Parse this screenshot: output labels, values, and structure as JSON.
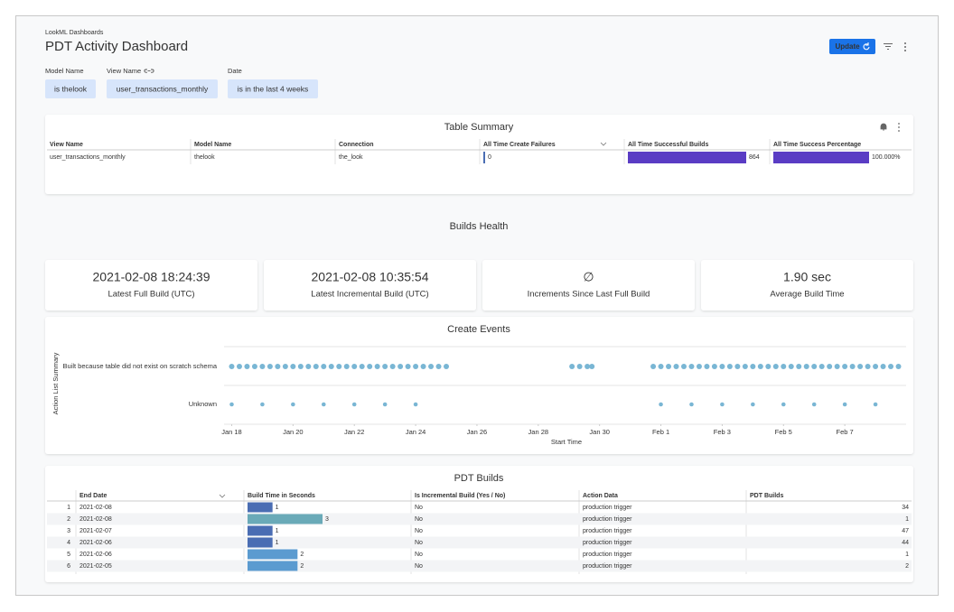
{
  "header": {
    "breadcrumb": "LookML Dashboards",
    "title": "PDT Activity Dashboard",
    "update_button": "Update"
  },
  "filters": [
    {
      "label": "Model Name",
      "value": "is thelook"
    },
    {
      "label": "View Name",
      "value": "user_transactions_monthly"
    },
    {
      "label": "Date",
      "value": "is in the last 4 weeks"
    }
  ],
  "table_summary": {
    "title": "Table Summary",
    "columns": [
      "View Name",
      "Model Name",
      "Connection",
      "All Time Create Failures",
      "All Time Successful Builds",
      "All Time Success Percentage"
    ],
    "rows": [
      [
        "user_transactions_monthly",
        "thelook",
        "the_look",
        0,
        864,
        {
          "value": 100,
          "label": "100.000%"
        }
      ]
    ],
    "bar_color": "#5a3cc4"
  },
  "section_title": "Builds Health",
  "kpis": [
    {
      "value": "2021-02-08 18:24:39",
      "label": "Latest Full Build (UTC)"
    },
    {
      "value": "2021-02-08 10:35:54",
      "label": "Latest Incremental Build (UTC)"
    },
    {
      "value": "∅",
      "label": "Increments Since Last Full Build"
    },
    {
      "value": "1.90 sec",
      "label": "Average Build Time"
    }
  ],
  "chart_data": {
    "type": "scatter",
    "title": "Create Events",
    "x_label": "Start Time",
    "y_label": "Action List Summary",
    "xlim": [
      17.75,
      40
    ],
    "xticks": [
      {
        "value": 18,
        "label": "Jan 18"
      },
      {
        "value": 20,
        "label": "Jan 20"
      },
      {
        "value": 22,
        "label": "Jan 22"
      },
      {
        "value": 24,
        "label": "Jan 24"
      },
      {
        "value": 26,
        "label": "Jan 26"
      },
      {
        "value": 28,
        "label": "Jan 28"
      },
      {
        "value": 30,
        "label": "Jan 30"
      },
      {
        "value": 32,
        "label": "Feb 1"
      },
      {
        "value": 34,
        "label": "Feb 3"
      },
      {
        "value": 36,
        "label": "Feb 5"
      },
      {
        "value": 38,
        "label": "Feb 7"
      }
    ],
    "grid": true,
    "series": [
      {
        "name": "Built because table did not exist on scratch schema",
        "color": "#79b6d4",
        "x": [
          18,
          18.25,
          18.5,
          18.75,
          19,
          19.25,
          19.5,
          19.75,
          20,
          20.25,
          20.5,
          20.75,
          21,
          21.25,
          21.5,
          21.75,
          22,
          22.25,
          22.5,
          22.75,
          23,
          23.25,
          23.5,
          23.75,
          24,
          24.25,
          24.5,
          24.75,
          25,
          29.1,
          29.35,
          29.6,
          29.75,
          31.75,
          32,
          32.25,
          32.5,
          32.75,
          33,
          33.25,
          33.5,
          33.75,
          34,
          34.25,
          34.5,
          34.75,
          35,
          35.25,
          35.5,
          35.75,
          36,
          36.25,
          36.5,
          36.75,
          37,
          37.25,
          37.5,
          37.75,
          38,
          38.25,
          38.5,
          38.75,
          39,
          39.25,
          39.5,
          39.75
        ]
      },
      {
        "name": "Unknown",
        "color": "#79b6d4",
        "x": [
          18,
          19,
          20,
          21,
          22,
          23,
          24,
          32,
          33,
          34,
          35,
          36,
          37,
          38,
          39
        ]
      }
    ]
  },
  "pdt_builds": {
    "title": "PDT Builds",
    "columns": [
      "End Date",
      "Build Time in Seconds",
      "Is Incremental Build (Yes / No)",
      "Action Data",
      "PDT Builds"
    ],
    "rows": [
      [
        1,
        "2021-02-08",
        1,
        "No",
        "production trigger",
        34
      ],
      [
        2,
        "2021-02-08",
        3,
        "No",
        "production trigger",
        1
      ],
      [
        3,
        "2021-02-07",
        1,
        "No",
        "production trigger",
        47
      ],
      [
        4,
        "2021-02-06",
        1,
        "No",
        "production trigger",
        44
      ],
      [
        5,
        "2021-02-06",
        2,
        "No",
        "production trigger",
        1
      ],
      [
        6,
        "2021-02-05",
        2,
        "No",
        "production trigger",
        2
      ]
    ],
    "bar_colors": [
      "#4a6db3",
      "#6aaab8",
      "#4a6db3",
      "#4a6db3",
      "#5b9bd0",
      "#5b9bd0"
    ]
  }
}
